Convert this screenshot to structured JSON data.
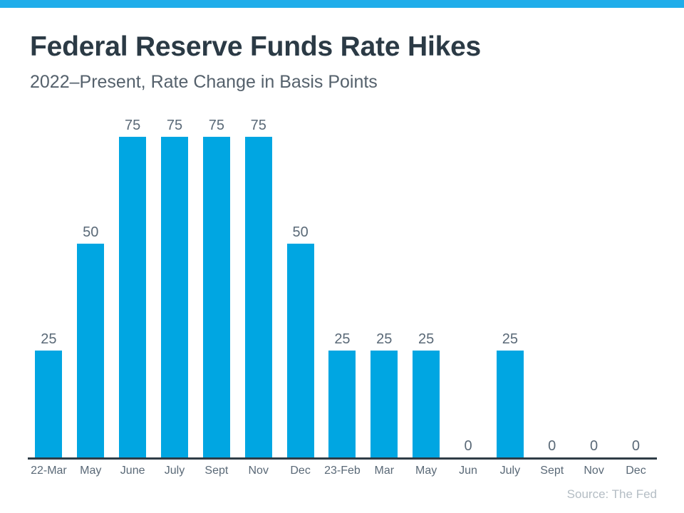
{
  "chart_data": {
    "type": "bar",
    "title": "Federal Reserve Funds Rate Hikes",
    "subtitle": "2022–Present, Rate Change in Basis Points",
    "categories": [
      "22-Mar",
      "May",
      "June",
      "July",
      "Sept",
      "Nov",
      "Dec",
      "23-Feb",
      "Mar",
      "May",
      "Jun",
      "July",
      "Sept",
      "Nov",
      "Dec"
    ],
    "values": [
      25,
      50,
      75,
      75,
      75,
      75,
      50,
      25,
      25,
      25,
      0,
      25,
      0,
      0,
      0
    ],
    "xlabel": "",
    "ylabel": "",
    "ylim": [
      0,
      75
    ],
    "grid": false,
    "legend": false,
    "data_labels": true,
    "bar_color": "#00A6E2"
  },
  "source": {
    "label": "Source: The Fed"
  },
  "colors": {
    "accent": "#1FADEA",
    "bar": "#00A6E2",
    "title": "#2B3A45",
    "subtitle": "#55616C",
    "label": "#5A6977",
    "axis": "#2F3C46",
    "source": "#B4BDC4"
  }
}
